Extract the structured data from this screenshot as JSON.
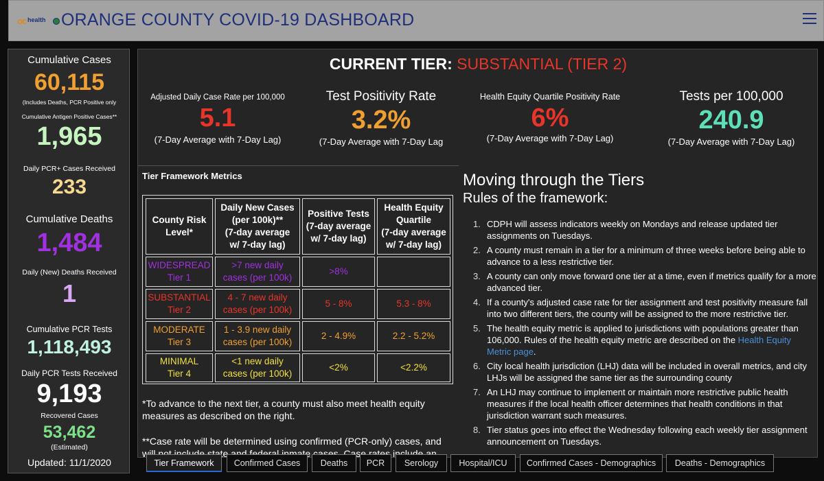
{
  "header": {
    "logo_oc": "oc",
    "logo_text": "health",
    "title": "ORANGE COUNTY COVID-19 DASHBOARD"
  },
  "sidebar": {
    "cumulative_cases_label": "Cumulative Cases",
    "cumulative_cases_value": "60,115",
    "cumulative_cases_note": "(Includes Deaths, PCR Positive only",
    "antigen_label": "Cumulative Antigen Positive Cases**",
    "antigen_value": "1,965",
    "daily_pcr_pos_label": "Daily PCR+ Cases Received",
    "daily_pcr_pos_value": "233",
    "cumulative_deaths_label": "Cumulative Deaths",
    "cumulative_deaths_value": "1,484",
    "daily_deaths_label": "Daily (New) Deaths Received",
    "daily_deaths_value": "1",
    "cumulative_pcr_tests_label": "Cumulative PCR Tests",
    "cumulative_pcr_tests_value": "1,118,493",
    "daily_pcr_tests_label": "Daily PCR Tests Received",
    "daily_pcr_tests_value": "9,193",
    "recovered_label": "Recovered Cases",
    "recovered_value": "53,462",
    "recovered_note": "(Estimated)",
    "updated": "Updated: 11/1/2020"
  },
  "tier": {
    "prefix": "CURRENT TIER: ",
    "status": "SUBSTANTIAL (TIER 2)"
  },
  "metrics": [
    {
      "label": "Adjusted Daily Case Rate per 100,000",
      "value": "5.1",
      "sub": "(7-Day Average with 7-Day Lag)",
      "color": "#e8352a"
    },
    {
      "label": "Test Positivity Rate",
      "value": "3.2%",
      "sub": "(7-Day Average with 7-Day Lag",
      "color": "#f0a030"
    },
    {
      "label": "Health Equity Quartile Positivity Rate",
      "value": "6%",
      "sub": "(7-Day Average with 7-Day Lag)",
      "color": "#e8352a"
    },
    {
      "label": "Tests per 100,000",
      "value": "240.9",
      "sub": "(7-Day Average with 7-Day Lag)",
      "color": "#5ce0b8"
    }
  ],
  "framework": {
    "title": "Tier Framework Metrics",
    "headers": [
      "County Risk Level*",
      "Daily New Cases (per 100k)** (7-day average w/ 7-day lag)",
      "Positive Tests (7-day average w/ 7-day lag)",
      "Health Equity Quartile (7-day average w/ 7-day lag)"
    ],
    "header_lines": [
      [
        "County Risk",
        "Level*"
      ],
      [
        "Daily New Cases",
        "(per 100k)**",
        "(7-day average",
        "w/ 7-day lag)"
      ],
      [
        "Positive Tests",
        "(7-day average",
        "w/ 7-day lag)"
      ],
      [
        "Health Equity",
        "Quartile",
        "(7-day average",
        "w/ 7-day lag)"
      ]
    ],
    "rows": [
      {
        "level": [
          "WIDESPREAD",
          "Tier 1"
        ],
        "cases": [
          ">7 new daily",
          "cases (per 100k)"
        ],
        "positive": ">8%",
        "equity": "",
        "color": "#a030e0"
      },
      {
        "level": [
          "SUBSTANTIAL",
          "Tier 2"
        ],
        "cases": [
          "4 - 7 new daily",
          "cases (per 100k)"
        ],
        "positive": "5 - 8%",
        "equity": "5.3 - 8%",
        "color": "#e8352a"
      },
      {
        "level": [
          "MODERATE",
          "Tier 3"
        ],
        "cases": [
          "1 - 3.9 new daily",
          "cases (per 100k)"
        ],
        "positive": "2 - 4.9%",
        "equity": "2.2 - 5.2%",
        "color": "#f0a030"
      },
      {
        "level": [
          "MINIMAL",
          "Tier 4"
        ],
        "cases": [
          "<1 new daily",
          "cases (per 100k)"
        ],
        "positive": "<2%",
        "equity": "<2.2%",
        "color": "#f0e040"
      }
    ],
    "note1": "*To advance to the next tier, a county must also meet health equity measures as described on the right.",
    "note2": "**Case rate will be determined using confirmed (PCR-only) cases, and will not include state and federal inmate cases. Case rates include an"
  },
  "moving": {
    "title": "Moving through the Tiers",
    "subtitle": "Rules of the framework:",
    "rules": [
      "CDPH will assess indicators weekly on Mondays and release updated tier assignments on Tuesdays.",
      "A county must remain in a tier for a minimum of three weeks before being able to advance to a less restrictive tier.",
      "A county can only move forward one tier at a time, even if metrics qualify for a more advanced tier.",
      "If a county's adjusted case rate for tier assignment and test positivity measure fall into two different tiers, the county will be assigned to the more restrictive tier.",
      "The health equity metric is applied to jurisdictions with populations greater than 106,000. Rules of the health equity metric are described on the ",
      "City local health jurisdiction (LHJ) data will be included in overall metrics, and city LHJs will be assigned the same tier as the surrounding county",
      "An LHJ may continue to implement or maintain more restrictive public health measures if the local health officer determines that health conditions in that jurisdiction warrant such measures.",
      "Tier status goes into effect the Wednesday following each weekly tier assignment announcement on Tuesdays."
    ],
    "rule5_link": "Health Equity Metric page",
    "rule5_end": "."
  },
  "tabs": [
    "Tier Framework",
    "Confirmed Cases",
    "Deaths",
    "PCR",
    "Serology",
    "Hospital/ICU",
    "Confirmed Cases - Demographics",
    "Deaths - Demographics"
  ]
}
